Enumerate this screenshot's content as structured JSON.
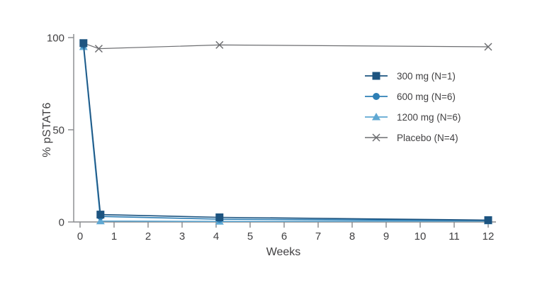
{
  "chart_data": {
    "type": "line",
    "title": "",
    "xlabel": "Weeks",
    "ylabel": "% pSTAT6",
    "xlim": [
      0,
      12.3
    ],
    "ylim": [
      0,
      100
    ],
    "x_ticks": [
      0,
      1,
      2,
      3,
      4,
      5,
      6,
      7,
      8,
      9,
      10,
      11,
      12
    ],
    "y_ticks": [
      0,
      50,
      100
    ],
    "grid": false,
    "legend_position": "inside-upper-right",
    "series": [
      {
        "name": "300 mg (N=1)",
        "marker": "square",
        "color": "#1d5480",
        "x": [
          0.1,
          0.6,
          4.1,
          12
        ],
        "y": [
          97,
          4,
          2.5,
          1
        ]
      },
      {
        "name": "600 mg (N=6)",
        "marker": "circle",
        "color": "#2e7fb5",
        "x": [
          0.1,
          0.6,
          4.1,
          12
        ],
        "y": [
          96,
          3,
          1.5,
          0.8
        ]
      },
      {
        "name": "1200 mg (N=6)",
        "marker": "triangle",
        "color": "#5fa8d3",
        "x": [
          0.1,
          0.6,
          4.1,
          12
        ],
        "y": [
          95,
          0.5,
          0.3,
          0.5
        ]
      },
      {
        "name": "Placebo (N=4)",
        "marker": "x",
        "color": "#6d6e71",
        "x": [
          0.1,
          0.55,
          4.1,
          12
        ],
        "y": [
          97,
          94,
          96,
          95
        ]
      }
    ]
  },
  "colors": {
    "background": "#ffffff",
    "axis": "#87898c",
    "text": "#414042"
  }
}
